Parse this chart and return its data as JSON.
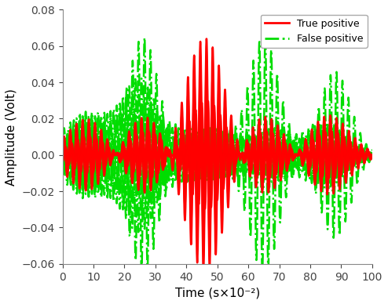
{
  "xlim": [
    0,
    100
  ],
  "ylim": [
    -0.06,
    0.08
  ],
  "xlabel": "Time (s×10⁻²)",
  "ylabel": "Amplitude (Volt)",
  "yticks": [
    -0.06,
    -0.04,
    -0.02,
    0.0,
    0.02,
    0.04,
    0.06,
    0.08
  ],
  "xticks": [
    0,
    10,
    20,
    30,
    40,
    50,
    60,
    70,
    80,
    90,
    100
  ],
  "red_color": "#ff0000",
  "green_color": "#00dd00",
  "legend_loc": "upper right",
  "fig_width": 4.94,
  "fig_height": 3.88
}
